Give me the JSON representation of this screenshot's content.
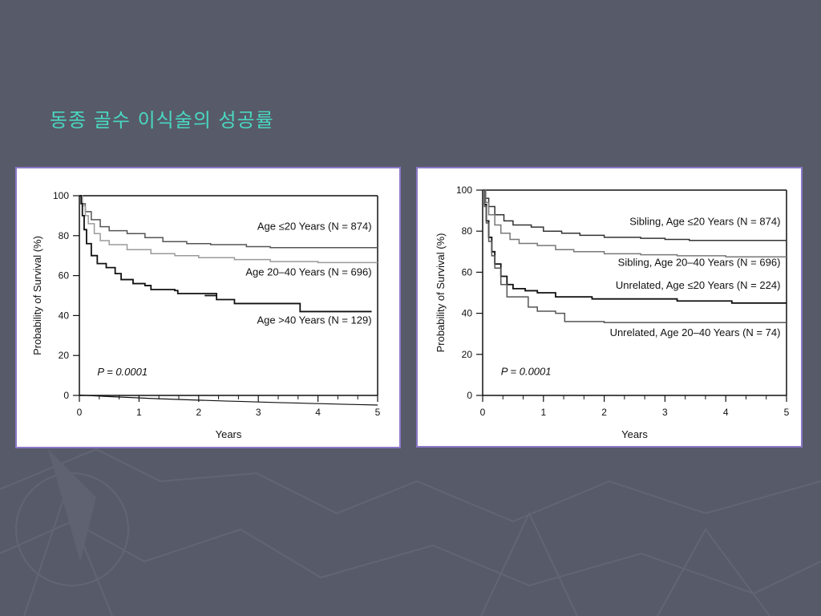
{
  "slide": {
    "title": "동종 골수 이식술의 성공률",
    "colors": {
      "background": "#575a68",
      "title": "#49d8c2",
      "panel_border": "#8b78c8"
    }
  },
  "chart_data": [
    {
      "type": "line",
      "step": true,
      "title": "",
      "xlabel": "Years",
      "ylabel": "Probability of Survival (%)",
      "xlim": [
        0,
        5
      ],
      "ylim": [
        0,
        100
      ],
      "xticks": [
        "0",
        "1",
        "2",
        "3",
        "4",
        "5"
      ],
      "yticks": [
        "0",
        "20",
        "40",
        "60",
        "80",
        "100"
      ],
      "annotation": "P = 0.0001",
      "series": [
        {
          "name": "Age ≤20 Years (N = 874)",
          "color": "#555555",
          "points": [
            [
              0,
              100
            ],
            [
              0.05,
              96
            ],
            [
              0.1,
              92
            ],
            [
              0.2,
              88
            ],
            [
              0.35,
              84.5
            ],
            [
              0.5,
              82.5
            ],
            [
              0.8,
              81
            ],
            [
              1.1,
              79
            ],
            [
              1.4,
              77
            ],
            [
              1.8,
              76
            ],
            [
              2.2,
              75.5
            ],
            [
              2.8,
              74.5
            ],
            [
              3.2,
              74
            ],
            [
              5,
              74
            ]
          ]
        },
        {
          "name": "Age 20–40 Years (N = 696)",
          "color": "#9a9a9a",
          "points": [
            [
              0,
              100
            ],
            [
              0.05,
              95
            ],
            [
              0.1,
              90
            ],
            [
              0.15,
              86
            ],
            [
              0.25,
              81
            ],
            [
              0.35,
              77.5
            ],
            [
              0.5,
              75.5
            ],
            [
              0.8,
              73
            ],
            [
              1.2,
              71
            ],
            [
              1.6,
              70
            ],
            [
              2.0,
              69
            ],
            [
              2.6,
              68
            ],
            [
              3.2,
              67
            ],
            [
              4.0,
              66.5
            ],
            [
              5,
              66.5
            ]
          ]
        },
        {
          "name": "Age >40 Years (N = 129)",
          "color": "#111111",
          "points": [
            [
              0,
              100
            ],
            [
              0.03,
              96
            ],
            [
              0.05,
              90
            ],
            [
              0.08,
              83
            ],
            [
              0.12,
              76
            ],
            [
              0.2,
              70
            ],
            [
              0.3,
              66
            ],
            [
              0.45,
              64
            ],
            [
              0.6,
              61
            ],
            [
              0.7,
              58
            ],
            [
              0.9,
              56
            ],
            [
              1.1,
              55
            ],
            [
              1.2,
              53
            ],
            [
              1.6,
              52.5
            ],
            [
              1.65,
              51
            ],
            [
              2.3,
              50
            ],
            [
              2.1,
              50
            ],
            [
              2.3,
              48
            ],
            [
              2.6,
              46
            ],
            [
              3.7,
              46
            ],
            [
              3.7,
              42
            ],
            [
              4.9,
              42
            ]
          ]
        }
      ],
      "legend": [
        {
          "text": "Age ≤20 Years (N = 874)",
          "x": 4.9,
          "y": 83
        },
        {
          "text": "Age 20–40 Years (N = 696)",
          "x": 4.9,
          "y": 60
        },
        {
          "text": "Age >40 Years (N = 129)",
          "x": 4.9,
          "y": 36
        }
      ]
    },
    {
      "type": "line",
      "step": true,
      "title": "",
      "xlabel": "Years",
      "ylabel": "Probability of Survival (%)",
      "xlim": [
        0,
        5
      ],
      "ylim": [
        0,
        100
      ],
      "xticks": [
        "0",
        "1",
        "2",
        "3",
        "4",
        "5"
      ],
      "yticks": [
        "0",
        "20",
        "40",
        "60",
        "80",
        "100"
      ],
      "annotation": "P = 0.0001",
      "series": [
        {
          "name": "Sibling, Age ≤20 Years (N = 874)",
          "color": "#333333",
          "points": [
            [
              0,
              100
            ],
            [
              0.05,
              96
            ],
            [
              0.1,
              92
            ],
            [
              0.2,
              88
            ],
            [
              0.35,
              85
            ],
            [
              0.5,
              83
            ],
            [
              0.8,
              82
            ],
            [
              1.0,
              80
            ],
            [
              1.3,
              79
            ],
            [
              1.6,
              78
            ],
            [
              2.0,
              77
            ],
            [
              2.6,
              76.5
            ],
            [
              3.0,
              76
            ],
            [
              3.4,
              75.5
            ],
            [
              5,
              75.5
            ]
          ]
        },
        {
          "name": "Sibling, Age 20–40 Years (N = 696)",
          "color": "#777777",
          "points": [
            [
              0,
              100
            ],
            [
              0.05,
              94
            ],
            [
              0.1,
              88
            ],
            [
              0.2,
              83
            ],
            [
              0.3,
              79
            ],
            [
              0.45,
              76
            ],
            [
              0.6,
              74
            ],
            [
              0.9,
              73
            ],
            [
              1.2,
              71
            ],
            [
              1.5,
              70
            ],
            [
              2.0,
              69
            ],
            [
              2.6,
              68.5
            ],
            [
              3.2,
              68
            ],
            [
              4.0,
              67.5
            ],
            [
              5,
              67.5
            ]
          ]
        },
        {
          "name": "Unrelated, Age ≤20 Years (N = 224)",
          "color": "#111111",
          "points": [
            [
              0,
              100
            ],
            [
              0.03,
              93
            ],
            [
              0.06,
              85
            ],
            [
              0.1,
              77
            ],
            [
              0.15,
              70
            ],
            [
              0.2,
              64
            ],
            [
              0.3,
              58
            ],
            [
              0.4,
              54
            ],
            [
              0.5,
              52
            ],
            [
              0.7,
              51
            ],
            [
              0.9,
              50
            ],
            [
              1.2,
              48
            ],
            [
              1.8,
              47
            ],
            [
              2.6,
              47
            ],
            [
              3.2,
              46
            ],
            [
              4.1,
              45
            ],
            [
              5,
              45
            ]
          ]
        },
        {
          "name": "Unrelated, Age 20–40 Years (N = 74)",
          "color": "#555555",
          "points": [
            [
              0,
              100
            ],
            [
              0.03,
              92
            ],
            [
              0.06,
              84
            ],
            [
              0.1,
              75
            ],
            [
              0.15,
              68
            ],
            [
              0.2,
              62
            ],
            [
              0.3,
              54
            ],
            [
              0.4,
              48
            ],
            [
              0.7,
              48
            ],
            [
              0.75,
              43
            ],
            [
              0.9,
              41
            ],
            [
              1.2,
              40
            ],
            [
              1.35,
              36
            ],
            [
              2.0,
              35.5
            ],
            [
              5,
              35.5
            ]
          ]
        }
      ],
      "legend": [
        {
          "text": "Sibling, Age ≤20 Years (N = 874)",
          "x": 4.9,
          "y": 83
        },
        {
          "text": "Sibling, Age 20–40 Years (N = 696)",
          "x": 4.9,
          "y": 63
        },
        {
          "text": "Unrelated, Age ≤20 Years (N = 224)",
          "x": 4.9,
          "y": 52
        },
        {
          "text": "Unrelated, Age 20–40 Years (N = 74)",
          "x": 4.9,
          "y": 29
        }
      ]
    }
  ]
}
